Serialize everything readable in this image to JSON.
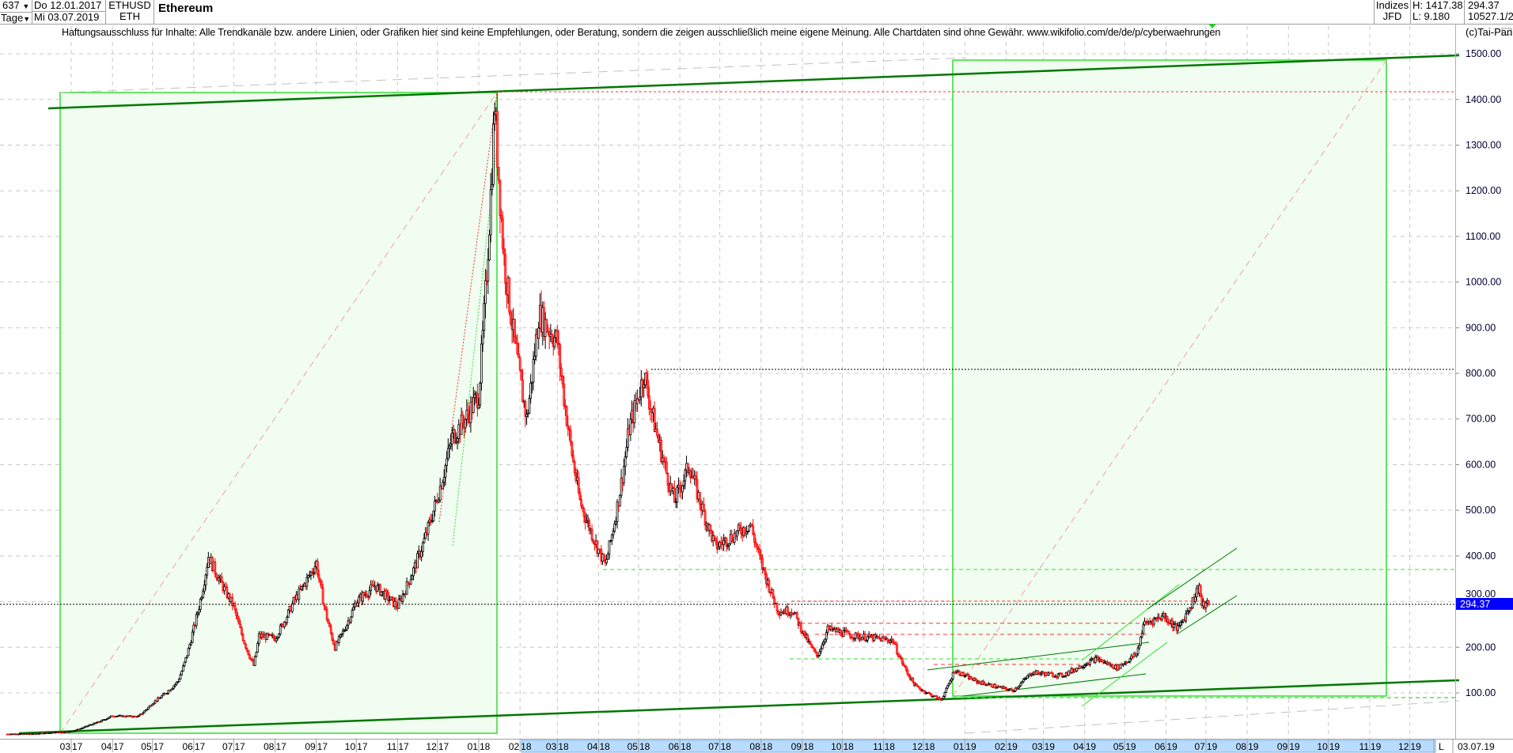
{
  "header": {
    "bar_count": "637",
    "period": "Tage",
    "date_from": "Do 12.01.2017",
    "date_to": "Mi 03.07.2019",
    "symbol": "ETHUSD",
    "short": "ETH",
    "name": "Ethereum",
    "market": "Indizes",
    "source": "JFD",
    "high": "H: 1417.38",
    "low": "L: 9.180",
    "last": "294.37",
    "misc": "10527.1/2",
    "copyright": "(c)Tai-Pan"
  },
  "disclaimer": "Haftungsausschluss für Inhalte: Alle Trendkanäle bzw. andere Linien, oder Grafiken hier sind keine Empfehlungen, oder Beratung, sondern die zeigen ausschließlich meine eigene Meinung. Alle Chartdaten sind ohne Gewähr.  www.wikifolio.com/de/de/p/cyberwaehrungen",
  "x_axis": {
    "end_marker": "L",
    "end_date": "03.07.19"
  },
  "colors": {
    "up_candle": "#000000",
    "down_candle": "#ff0000",
    "zone_fill": "#f0fdf0",
    "zone_border": "#33dd33",
    "trend_dark": "#007700",
    "last_price_box": "#0000ff",
    "axis_highlight": "#b8dcff"
  },
  "chart_data": {
    "type": "candlestick",
    "title": "Ethereum",
    "ylim": [
      0,
      1560
    ],
    "y_ticks": [
      "100.00",
      "200.00",
      "300.00",
      "400.00",
      "500.00",
      "600.00",
      "700.00",
      "800.00",
      "900.00",
      "1000.00",
      "1100.00",
      "1200.00",
      "1300.00",
      "1400.00",
      "1500.00"
    ],
    "last_price_label": "294.37",
    "x_ticks": [
      "03 17",
      "04 17",
      "05 17",
      "06 17",
      "07 17",
      "08 17",
      "09 17",
      "10 17",
      "11 17",
      "12 17",
      "01 18",
      "02 18",
      "03 18",
      "04 18",
      "05 18",
      "06 18",
      "07 18",
      "08 18",
      "09 18",
      "10 18",
      "11 18",
      "12 18",
      "01 19",
      "02 19",
      "03 19",
      "04 19",
      "05 19",
      "06 19",
      "07 19",
      "08 19",
      "09 19",
      "10 19",
      "11 19",
      "12 19"
    ],
    "grid": true,
    "approx_closes": [
      [
        "2017-01-12",
        10
      ],
      [
        "2017-02-01",
        10.7
      ],
      [
        "2017-03-01",
        16
      ],
      [
        "2017-03-15",
        30
      ],
      [
        "2017-04-01",
        50
      ],
      [
        "2017-04-20",
        48
      ],
      [
        "2017-05-01",
        78
      ],
      [
        "2017-05-20",
        125
      ],
      [
        "2017-05-31",
        230
      ],
      [
        "2017-06-12",
        400
      ],
      [
        "2017-06-20",
        350
      ],
      [
        "2017-07-01",
        290
      ],
      [
        "2017-07-16",
        160
      ],
      [
        "2017-07-20",
        225
      ],
      [
        "2017-08-01",
        220
      ],
      [
        "2017-08-15",
        300
      ],
      [
        "2017-09-01",
        385
      ],
      [
        "2017-09-15",
        200
      ],
      [
        "2017-10-01",
        300
      ],
      [
        "2017-10-15",
        335
      ],
      [
        "2017-11-01",
        290
      ],
      [
        "2017-11-25",
        470
      ],
      [
        "2017-12-12",
        660
      ],
      [
        "2017-12-22",
        700
      ],
      [
        "2018-01-01",
        755
      ],
      [
        "2018-01-13",
        1390
      ],
      [
        "2018-01-20",
        1050
      ],
      [
        "2018-02-06",
        700
      ],
      [
        "2018-02-15",
        930
      ],
      [
        "2018-03-01",
        870
      ],
      [
        "2018-03-18",
        520
      ],
      [
        "2018-04-06",
        380
      ],
      [
        "2018-04-24",
        680
      ],
      [
        "2018-05-05",
        800
      ],
      [
        "2018-05-28",
        520
      ],
      [
        "2018-06-08",
        600
      ],
      [
        "2018-06-28",
        420
      ],
      [
        "2018-07-24",
        470
      ],
      [
        "2018-08-14",
        280
      ],
      [
        "2018-08-25",
        280
      ],
      [
        "2018-09-12",
        180
      ],
      [
        "2018-09-20",
        240
      ],
      [
        "2018-10-10",
        225
      ],
      [
        "2018-11-08",
        215
      ],
      [
        "2018-11-25",
        115
      ],
      [
        "2018-12-14",
        85
      ],
      [
        "2018-12-24",
        150
      ],
      [
        "2019-01-10",
        125
      ],
      [
        "2019-02-06",
        105
      ],
      [
        "2019-02-20",
        145
      ],
      [
        "2019-03-15",
        138
      ],
      [
        "2019-04-02",
        165
      ],
      [
        "2019-04-10",
        175
      ],
      [
        "2019-04-25",
        155
      ],
      [
        "2019-05-10",
        185
      ],
      [
        "2019-05-15",
        250
      ],
      [
        "2019-05-30",
        270
      ],
      [
        "2019-06-10",
        240
      ],
      [
        "2019-06-26",
        335
      ],
      [
        "2019-06-28",
        290
      ],
      [
        "2019-07-03",
        294.37
      ]
    ],
    "horizontal_levels": [
      1417.38,
      805,
      370,
      294.37
    ]
  }
}
